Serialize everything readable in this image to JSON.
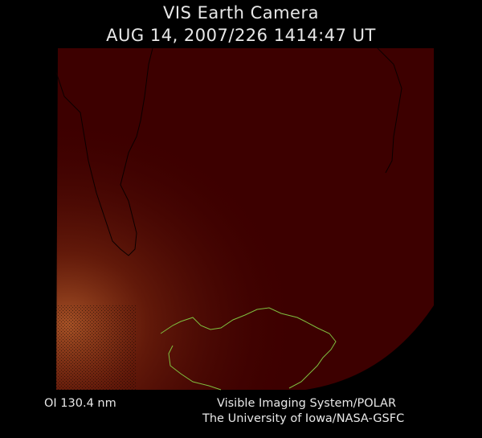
{
  "header": {
    "title": "VIS Earth Camera",
    "timestamp": "AUG 14, 2007/226 1414:47 UT"
  },
  "footer": {
    "wavelength": "OI  130.4 nm",
    "credit_line1": "Visible Imaging System/POLAR",
    "credit_line2": "The University of Iowa/NASA-GSFC"
  },
  "colors": {
    "background": "#000000",
    "disk": "#3d0000",
    "coastline_continent": "#0a0000",
    "coastline_antarctica": "#7fbf3f",
    "aurora_glow": "#b05a2a"
  }
}
